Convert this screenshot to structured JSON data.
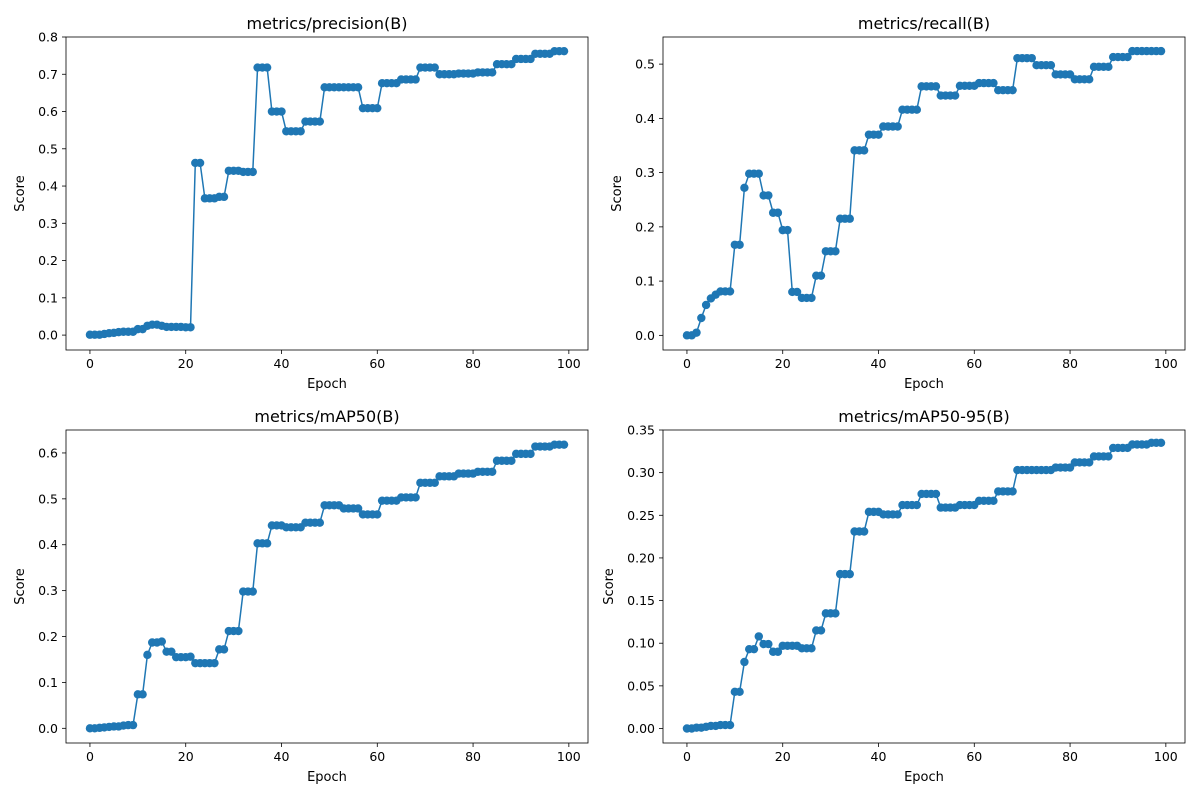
{
  "figure": {
    "color": "#1f77b4"
  },
  "chart_data": [
    {
      "type": "line",
      "title": "metrics/precision(B)",
      "xlabel": "Epoch",
      "ylabel": "Score",
      "xlim": [
        -5,
        104
      ],
      "ylim": [
        -0.04,
        0.8
      ],
      "xticks": [
        0,
        20,
        40,
        60,
        80,
        100
      ],
      "yticks": [
        0.0,
        0.1,
        0.2,
        0.3,
        0.4,
        0.5,
        0.6,
        0.7,
        0.8
      ],
      "ytick_decimals": 1,
      "grid": false,
      "series": [
        {
          "values": [
            0.001,
            0.001,
            0.001,
            0.003,
            0.005,
            0.006,
            0.008,
            0.009,
            0.009,
            0.009,
            0.016,
            0.016,
            0.025,
            0.028,
            0.028,
            0.025,
            0.022,
            0.022,
            0.022,
            0.022,
            0.021,
            0.021,
            0.462,
            0.462,
            0.367,
            0.367,
            0.367,
            0.371,
            0.371,
            0.441,
            0.441,
            0.441,
            0.438,
            0.438,
            0.438,
            0.718,
            0.718,
            0.718,
            0.6,
            0.6,
            0.6,
            0.547,
            0.547,
            0.547,
            0.547,
            0.573,
            0.573,
            0.573,
            0.573,
            0.665,
            0.665,
            0.665,
            0.665,
            0.665,
            0.665,
            0.665,
            0.665,
            0.609,
            0.609,
            0.609,
            0.609,
            0.676,
            0.676,
            0.676,
            0.676,
            0.686,
            0.686,
            0.686,
            0.686,
            0.718,
            0.718,
            0.718,
            0.718,
            0.7,
            0.7,
            0.7,
            0.7,
            0.702,
            0.702,
            0.702,
            0.702,
            0.705,
            0.705,
            0.705,
            0.705,
            0.727,
            0.727,
            0.727,
            0.727,
            0.741,
            0.741,
            0.741,
            0.741,
            0.755,
            0.755,
            0.755,
            0.755,
            0.762,
            0.762,
            0.762
          ]
        }
      ]
    },
    {
      "type": "line",
      "title": "metrics/recall(B)",
      "xlabel": "Epoch",
      "ylabel": "Score",
      "xlim": [
        -5,
        104
      ],
      "ylim": [
        -0.027,
        0.55
      ],
      "xticks": [
        0,
        20,
        40,
        60,
        80,
        100
      ],
      "yticks": [
        0.0,
        0.1,
        0.2,
        0.3,
        0.4,
        0.5
      ],
      "ytick_decimals": 1,
      "grid": false,
      "series": [
        {
          "values": [
            0.0,
            0.0,
            0.005,
            0.032,
            0.056,
            0.068,
            0.075,
            0.081,
            0.081,
            0.081,
            0.167,
            0.167,
            0.272,
            0.298,
            0.298,
            0.298,
            0.258,
            0.258,
            0.226,
            0.226,
            0.194,
            0.194,
            0.08,
            0.08,
            0.069,
            0.069,
            0.069,
            0.11,
            0.11,
            0.155,
            0.155,
            0.155,
            0.215,
            0.215,
            0.215,
            0.341,
            0.341,
            0.341,
            0.37,
            0.37,
            0.37,
            0.385,
            0.385,
            0.385,
            0.385,
            0.416,
            0.416,
            0.416,
            0.416,
            0.459,
            0.459,
            0.459,
            0.459,
            0.442,
            0.442,
            0.442,
            0.442,
            0.46,
            0.46,
            0.46,
            0.46,
            0.465,
            0.465,
            0.465,
            0.465,
            0.452,
            0.452,
            0.452,
            0.452,
            0.511,
            0.511,
            0.511,
            0.511,
            0.498,
            0.498,
            0.498,
            0.498,
            0.481,
            0.481,
            0.481,
            0.481,
            0.472,
            0.472,
            0.472,
            0.472,
            0.495,
            0.495,
            0.495,
            0.495,
            0.513,
            0.513,
            0.513,
            0.513,
            0.524,
            0.524,
            0.524,
            0.524,
            0.524,
            0.524,
            0.524
          ]
        }
      ]
    },
    {
      "type": "line",
      "title": "metrics/mAP50(B)",
      "xlabel": "Epoch",
      "ylabel": "Score",
      "xlim": [
        -5,
        104
      ],
      "ylim": [
        -0.032,
        0.65
      ],
      "xticks": [
        0,
        20,
        40,
        60,
        80,
        100
      ],
      "yticks": [
        0.0,
        0.1,
        0.2,
        0.3,
        0.4,
        0.5,
        0.6
      ],
      "ytick_decimals": 1,
      "grid": false,
      "series": [
        {
          "values": [
            0.0,
            0.0,
            0.001,
            0.002,
            0.003,
            0.004,
            0.004,
            0.006,
            0.007,
            0.007,
            0.074,
            0.074,
            0.16,
            0.187,
            0.187,
            0.189,
            0.167,
            0.167,
            0.155,
            0.155,
            0.155,
            0.156,
            0.142,
            0.142,
            0.142,
            0.142,
            0.142,
            0.172,
            0.172,
            0.212,
            0.212,
            0.212,
            0.298,
            0.298,
            0.298,
            0.403,
            0.403,
            0.403,
            0.442,
            0.442,
            0.442,
            0.438,
            0.438,
            0.438,
            0.438,
            0.448,
            0.448,
            0.448,
            0.448,
            0.486,
            0.486,
            0.486,
            0.486,
            0.479,
            0.479,
            0.479,
            0.479,
            0.466,
            0.466,
            0.466,
            0.466,
            0.496,
            0.496,
            0.496,
            0.496,
            0.503,
            0.503,
            0.503,
            0.503,
            0.535,
            0.535,
            0.535,
            0.535,
            0.549,
            0.549,
            0.549,
            0.549,
            0.555,
            0.555,
            0.555,
            0.555,
            0.559,
            0.559,
            0.559,
            0.559,
            0.583,
            0.583,
            0.583,
            0.583,
            0.598,
            0.598,
            0.598,
            0.598,
            0.614,
            0.614,
            0.614,
            0.614,
            0.618,
            0.618,
            0.618
          ]
        }
      ]
    },
    {
      "type": "line",
      "title": "metrics/mAP50-95(B)",
      "xlabel": "Epoch",
      "ylabel": "Score",
      "xlim": [
        -5,
        104
      ],
      "ylim": [
        -0.017,
        0.35
      ],
      "xticks": [
        0,
        20,
        40,
        60,
        80,
        100
      ],
      "yticks": [
        0.0,
        0.05,
        0.1,
        0.15,
        0.2,
        0.25,
        0.3,
        0.35
      ],
      "ytick_decimals": 2,
      "grid": false,
      "series": [
        {
          "values": [
            0.0,
            0.0,
            0.001,
            0.001,
            0.002,
            0.003,
            0.003,
            0.004,
            0.004,
            0.004,
            0.043,
            0.043,
            0.078,
            0.093,
            0.093,
            0.108,
            0.099,
            0.099,
            0.09,
            0.09,
            0.097,
            0.097,
            0.097,
            0.097,
            0.094,
            0.094,
            0.094,
            0.115,
            0.115,
            0.135,
            0.135,
            0.135,
            0.181,
            0.181,
            0.181,
            0.231,
            0.231,
            0.231,
            0.254,
            0.254,
            0.254,
            0.251,
            0.251,
            0.251,
            0.251,
            0.262,
            0.262,
            0.262,
            0.262,
            0.275,
            0.275,
            0.275,
            0.275,
            0.259,
            0.259,
            0.259,
            0.259,
            0.262,
            0.262,
            0.262,
            0.262,
            0.267,
            0.267,
            0.267,
            0.267,
            0.278,
            0.278,
            0.278,
            0.278,
            0.303,
            0.303,
            0.303,
            0.303,
            0.303,
            0.303,
            0.303,
            0.303,
            0.306,
            0.306,
            0.306,
            0.306,
            0.312,
            0.312,
            0.312,
            0.312,
            0.319,
            0.319,
            0.319,
            0.319,
            0.329,
            0.329,
            0.329,
            0.329,
            0.333,
            0.333,
            0.333,
            0.333,
            0.335,
            0.335,
            0.335
          ]
        }
      ]
    }
  ]
}
